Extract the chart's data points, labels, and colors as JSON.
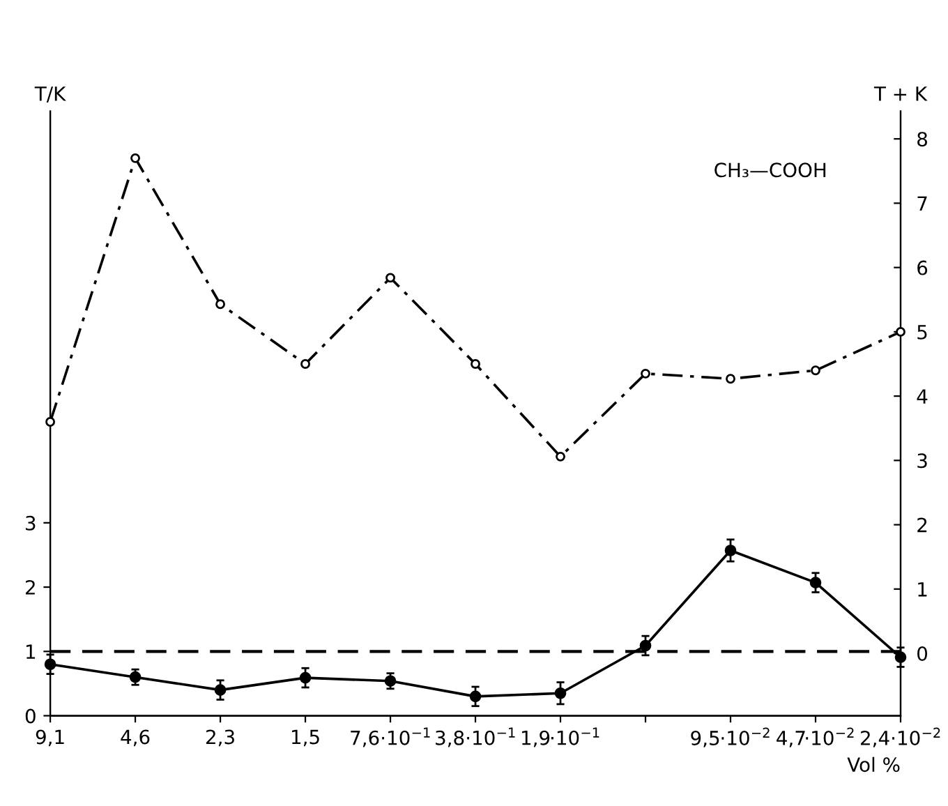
{
  "chart_data": {
    "type": "line",
    "ylabel": "T/K",
    "y2label": "T + K",
    "xlabel": "Vol %",
    "categories": [
      "9,1",
      "4,6",
      "2,3",
      "1,5",
      "7,6·10$^{−1}$",
      "3,8·10$^{−1}$",
      "1,9·10$^{−1}$",
      null,
      "9,5·10$^{−2}$",
      "4,7·10$^{−2}$",
      "2,4·10$^{−2}$"
    ],
    "ylim": [
      0,
      9.4
    ],
    "yticks": [
      0,
      1,
      2,
      3
    ],
    "y2lim": [
      -0.97,
      8.43
    ],
    "y2ticks": [
      0,
      1,
      2,
      3,
      4,
      5,
      6,
      7,
      8
    ],
    "series": [
      {
        "color": "#000000",
        "axis": "y",
        "marker": "circle",
        "line_style": "solid",
        "values": [
          0.8,
          0.6,
          0.4,
          0.59,
          0.54,
          0.3,
          0.35,
          1.09,
          2.57,
          2.07,
          0.91
        ],
        "errors": [
          0.15,
          0.12,
          0.15,
          0.15,
          0.12,
          0.15,
          0.17,
          0.15,
          0.17,
          0.15,
          0.15
        ]
      },
      {
        "color": "#000000",
        "axis": "y2",
        "marker": "circle",
        "line_style": "dashdot",
        "values": [
          3.6,
          7.7,
          5.43,
          4.5,
          5.84,
          4.5,
          3.06,
          4.35,
          4.27,
          4.4,
          5.0
        ]
      }
    ],
    "ref_lines": [
      {
        "axis": "y",
        "value": 1,
        "line_style": "dashed",
        "color": "#000000"
      }
    ],
    "annotations": [
      "CH₃—COOH"
    ],
    "grid": false
  }
}
